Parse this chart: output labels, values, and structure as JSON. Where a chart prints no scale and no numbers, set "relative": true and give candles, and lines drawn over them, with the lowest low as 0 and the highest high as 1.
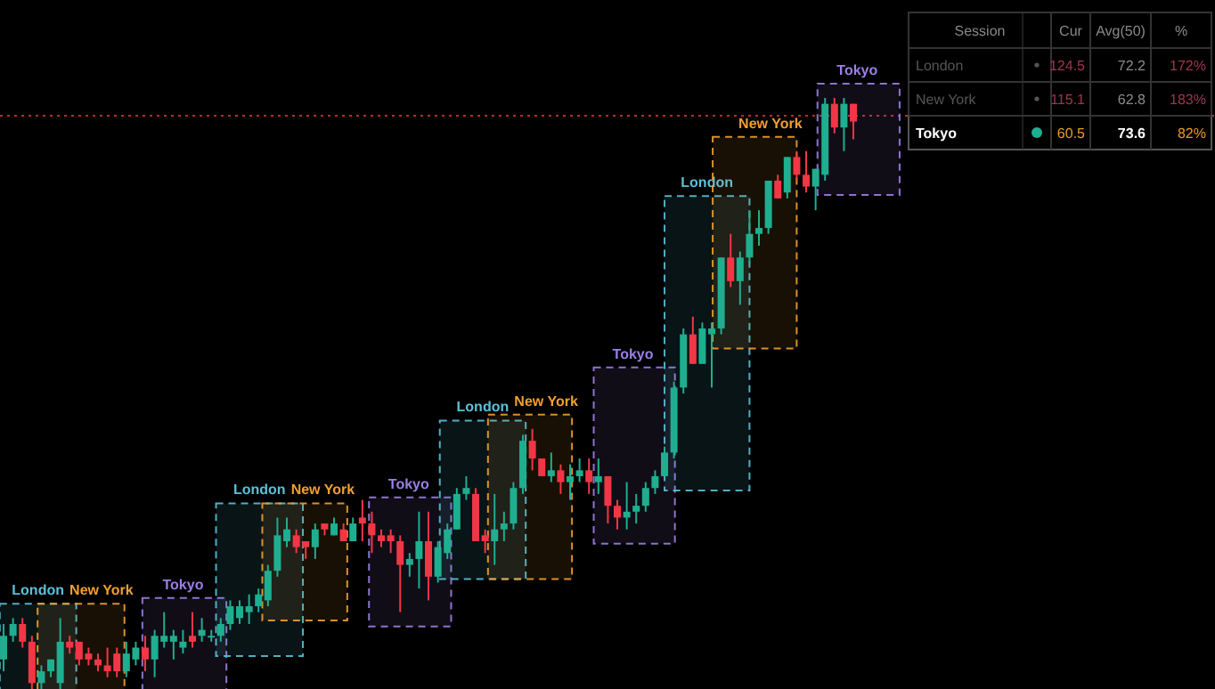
{
  "chart_data": [
    {
      "type": "candlestick",
      "relative": true,
      "categories": [
        null,
        null,
        null,
        null,
        null,
        null,
        null,
        null,
        null,
        null,
        null,
        null,
        null,
        null,
        null,
        null,
        null,
        null,
        null,
        null,
        null,
        null,
        null,
        null,
        null,
        null,
        null,
        null,
        null,
        null,
        null,
        null,
        null,
        null,
        null,
        null,
        null,
        null,
        null,
        null,
        null,
        null,
        null,
        null,
        null,
        null,
        null,
        null,
        null,
        null,
        null,
        null,
        null,
        null,
        null,
        null,
        null,
        null,
        null,
        null,
        null,
        null,
        null,
        null,
        null,
        null,
        null,
        null,
        null,
        null,
        null,
        null,
        null,
        null,
        null,
        null,
        null,
        null,
        null,
        null,
        null,
        null,
        null,
        null,
        null,
        null,
        null,
        null,
        null,
        null,
        null
      ],
      "ohlc": [
        [
          0.05,
          0.11,
          0.03,
          0.09
        ],
        [
          0.09,
          0.12,
          0.08,
          0.11
        ],
        [
          0.11,
          0.12,
          0.07,
          0.08
        ],
        [
          0.08,
          0.09,
          0,
          0.01
        ],
        [
          0.01,
          0.04,
          0,
          0.03
        ],
        [
          0.03,
          0.05,
          0.02,
          0.05
        ],
        [
          0.01,
          0.12,
          0,
          0.08
        ],
        [
          0.08,
          0.09,
          0.06,
          0.07
        ],
        [
          0.08,
          0.08,
          0.04,
          0.05
        ],
        [
          0.06,
          0.07,
          0.04,
          0.05
        ],
        [
          0.05,
          0.06,
          0.03,
          0.04
        ],
        [
          0.04,
          0.07,
          0.02,
          0.03
        ],
        [
          0.06,
          0.07,
          0.02,
          0.03
        ],
        [
          0.03,
          0.08,
          0.02,
          0.06
        ],
        [
          0.05,
          0.08,
          0.04,
          0.07
        ],
        [
          0.07,
          0.09,
          0.03,
          0.05
        ],
        [
          0.05,
          0.1,
          0.02,
          0.09
        ],
        [
          0.08,
          0.13,
          0.07,
          0.09
        ],
        [
          0.08,
          0.1,
          0.05,
          0.09
        ],
        [
          0.07,
          0.1,
          0.06,
          0.08
        ],
        [
          0.09,
          0.13,
          0.07,
          0.08
        ],
        [
          0.09,
          0.12,
          0.08,
          0.1
        ],
        [
          0.09,
          0.1,
          0.08,
          0.09
        ],
        [
          0.09,
          0.12,
          0.08,
          0.11
        ],
        [
          0.11,
          0.15,
          0.1,
          0.14
        ],
        [
          0.12,
          0.15,
          0.11,
          0.14
        ],
        [
          0.13,
          0.16,
          0.11,
          0.14
        ],
        [
          0.14,
          0.17,
          0.13,
          0.16
        ],
        [
          0.15,
          0.21,
          0.14,
          0.2
        ],
        [
          0.2,
          0.29,
          0.19,
          0.26
        ],
        [
          0.25,
          0.29,
          0.24,
          0.27
        ],
        [
          0.26,
          0.27,
          0.23,
          0.24
        ],
        [
          0.25,
          0.25,
          0.22,
          0.24
        ],
        [
          0.24,
          0.28,
          0.22,
          0.27
        ],
        [
          0.28,
          0.28,
          0.26,
          0.27
        ],
        [
          0.26,
          0.29,
          0.26,
          0.28
        ],
        [
          0.27,
          0.28,
          0.25,
          0.25
        ],
        [
          0.25,
          0.29,
          0.25,
          0.28
        ],
        [
          0.29,
          0.32,
          0.25,
          0.28
        ],
        [
          0.28,
          0.3,
          0.23,
          0.26
        ],
        [
          0.26,
          0.27,
          0.24,
          0.25
        ],
        [
          0.26,
          0.27,
          0.23,
          0.25
        ],
        [
          0.25,
          0.26,
          0.13,
          0.21
        ],
        [
          0.21,
          0.23,
          0.19,
          0.22
        ],
        [
          0.22,
          0.3,
          0.17,
          0.25
        ],
        [
          0.25,
          0.3,
          0.15,
          0.19
        ],
        [
          0.19,
          0.25,
          0.18,
          0.24
        ],
        [
          0.23,
          0.28,
          0.22,
          0.27
        ],
        [
          0.27,
          0.34,
          0.27,
          0.33
        ],
        [
          0.33,
          0.36,
          0.32,
          0.34
        ],
        [
          0.33,
          0.34,
          0.25,
          0.25
        ],
        [
          0.26,
          0.27,
          0.23,
          0.25
        ],
        [
          0.25,
          0.33,
          0.21,
          0.27
        ],
        [
          0.27,
          0.3,
          0.25,
          0.28
        ],
        [
          0.28,
          0.35,
          0.27,
          0.34
        ],
        [
          0.34,
          0.43,
          0.33,
          0.42
        ],
        [
          0.42,
          0.44,
          0.37,
          0.39
        ],
        [
          0.39,
          0.39,
          0.36,
          0.36
        ],
        [
          0.36,
          0.4,
          0.35,
          0.37
        ],
        [
          0.37,
          0.38,
          0.33,
          0.35
        ],
        [
          0.35,
          0.38,
          0.32,
          0.36
        ],
        [
          0.36,
          0.39,
          0.35,
          0.37
        ],
        [
          0.37,
          0.39,
          0.33,
          0.35
        ],
        [
          0.35,
          0.39,
          0.33,
          0.36
        ],
        [
          0.36,
          0.36,
          0.28,
          0.31
        ],
        [
          0.31,
          0.32,
          0.27,
          0.29
        ],
        [
          0.29,
          0.35,
          0.27,
          0.3
        ],
        [
          0.3,
          0.33,
          0.28,
          0.31
        ],
        [
          0.31,
          0.35,
          0.3,
          0.34
        ],
        [
          0.34,
          0.37,
          0.33,
          0.36
        ],
        [
          0.36,
          0.41,
          0.36,
          0.4
        ],
        [
          0.4,
          0.52,
          0.39,
          0.51
        ],
        [
          0.51,
          0.61,
          0.5,
          0.6
        ],
        [
          0.6,
          0.63,
          0.55,
          0.55
        ],
        [
          0.55,
          0.62,
          0.55,
          0.61
        ],
        [
          0.6,
          0.62,
          0.51,
          0.61
        ],
        [
          0.61,
          0.73,
          0.6,
          0.73
        ],
        [
          0.73,
          0.77,
          0.68,
          0.69
        ],
        [
          0.69,
          0.74,
          0.65,
          0.73
        ],
        [
          0.73,
          0.81,
          0.72,
          0.77
        ],
        [
          0.77,
          0.81,
          0.75,
          0.78
        ],
        [
          0.78,
          0.86,
          0.77,
          0.86
        ],
        [
          0.86,
          0.87,
          0.83,
          0.83
        ],
        [
          0.84,
          0.9,
          0.83,
          0.9
        ],
        [
          0.9,
          0.91,
          0.86,
          0.87
        ],
        [
          0.87,
          0.91,
          0.84,
          0.85
        ],
        [
          0.85,
          0.88,
          0.81,
          0.88
        ],
        [
          0.87,
          1,
          0.86,
          0.99
        ],
        [
          0.99,
          1,
          0.94,
          0.95
        ],
        [
          0.95,
          1,
          0.91,
          0.99
        ],
        [
          0.99,
          0.99,
          0.93,
          0.96
        ]
      ],
      "ref_lines": [
        {
          "axis": "y",
          "value": 0.97,
          "color": "#b03030",
          "line_style": "dotted"
        }
      ],
      "annotations": [
        "London",
        "New York",
        "Tokyo",
        "London",
        "New York",
        "Tokyo",
        "London",
        "New York",
        "Tokyo",
        "London",
        "New York",
        "Tokyo"
      ]
    },
    {
      "type": "other",
      "xlabel": "Session",
      "categories": [
        "London",
        "New York",
        "Tokyo"
      ],
      "data_labels": true,
      "series": [
        {
          "name": "Cur",
          "values": [
            124.5,
            115.1,
            60.5
          ],
          "colors": [
            "#a03550",
            "#a03550",
            "#e89a2a"
          ]
        },
        {
          "name": "Avg(50)",
          "values": [
            72.2,
            62.8,
            73.6
          ],
          "colors": [
            "#8a8a8a",
            "#8a8a8a",
            "#ffffff"
          ]
        },
        {
          "name": "%",
          "values": [
            172,
            183,
            82
          ],
          "value_labels": [
            "172%",
            "183%",
            "82%"
          ],
          "colors": [
            "#a03550",
            "#a03550",
            "#e89a2a"
          ]
        }
      ]
    }
  ]
}
